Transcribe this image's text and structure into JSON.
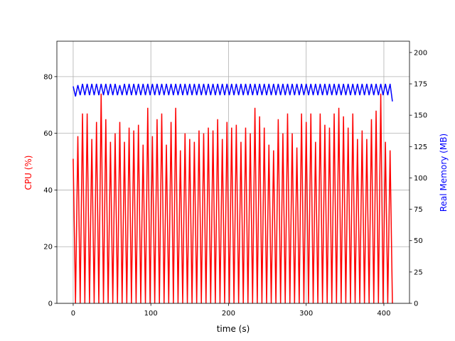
{
  "chart_data": {
    "type": "line",
    "xlabel": "time (s)",
    "ylabel": "CPU (%)",
    "y2label": "Real Memory (MB)",
    "xlim": [
      -21,
      433
    ],
    "xticks": [
      0,
      100,
      200,
      300,
      400
    ],
    "ylim": [
      0,
      92.5
    ],
    "yticks": [
      0,
      20,
      40,
      60,
      80
    ],
    "y2lim": [
      0,
      209
    ],
    "y2ticks": [
      0,
      25,
      50,
      75,
      100,
      125,
      150,
      175,
      200
    ],
    "grid": true,
    "x": [
      0,
      3,
      6,
      9,
      12,
      15,
      18,
      21,
      24,
      27,
      30,
      33,
      36,
      39,
      42,
      45,
      48,
      51,
      54,
      57,
      60,
      63,
      66,
      69,
      72,
      75,
      78,
      81,
      84,
      87,
      90,
      93,
      96,
      99,
      102,
      105,
      108,
      111,
      114,
      117,
      120,
      123,
      126,
      129,
      132,
      135,
      138,
      141,
      144,
      147,
      150,
      153,
      156,
      159,
      162,
      165,
      168,
      171,
      174,
      177,
      180,
      183,
      186,
      189,
      192,
      195,
      198,
      201,
      204,
      207,
      210,
      213,
      216,
      219,
      222,
      225,
      228,
      231,
      234,
      237,
      240,
      243,
      246,
      249,
      252,
      255,
      258,
      261,
      264,
      267,
      270,
      273,
      276,
      279,
      282,
      285,
      288,
      291,
      294,
      297,
      300,
      303,
      306,
      309,
      312,
      315,
      318,
      321,
      324,
      327,
      330,
      333,
      336,
      339,
      342,
      345,
      348,
      351,
      354,
      357,
      360,
      363,
      366,
      369,
      372,
      375,
      378,
      381,
      384,
      387,
      390,
      393,
      396,
      399,
      402,
      405,
      408,
      411
    ],
    "series": [
      {
        "name": "CPU (%)",
        "color": "#ff0000",
        "values": [
          51,
          0,
          59,
          0,
          67,
          0,
          67,
          0,
          58,
          0,
          64,
          0,
          74,
          0,
          65,
          0,
          57,
          0,
          60,
          0,
          64,
          0,
          57,
          0,
          62,
          0,
          61,
          0,
          63,
          0,
          56,
          0,
          69,
          0,
          59,
          0,
          65,
          0,
          67,
          0,
          56,
          0,
          64,
          0,
          69,
          0,
          54,
          0,
          60,
          0,
          58,
          0,
          57,
          0,
          61,
          0,
          60,
          0,
          62,
          0,
          61,
          0,
          65,
          0,
          58,
          0,
          64,
          0,
          62,
          0,
          63,
          0,
          57,
          0,
          62,
          0,
          60,
          0,
          69,
          0,
          66,
          0,
          62,
          0,
          56,
          0,
          54,
          0,
          65,
          0,
          60,
          0,
          67,
          0,
          60,
          0,
          55,
          0,
          67,
          0,
          64,
          0,
          67,
          0,
          57,
          0,
          67,
          0,
          63,
          0,
          62,
          0,
          67,
          0,
          69,
          0,
          66,
          0,
          62,
          0,
          67,
          0,
          58,
          0,
          61,
          0,
          58,
          0,
          65,
          0,
          68,
          0,
          74,
          0,
          57,
          0,
          54,
          0
        ]
      },
      {
        "name": "Real Memory (MB)",
        "color": "#0000ff",
        "axis": "y2",
        "values": [
          173,
          165,
          174,
          166,
          175,
          166,
          175,
          166,
          175,
          166,
          175,
          166,
          175,
          166,
          175,
          166,
          175,
          166,
          175,
          166,
          174,
          166,
          175,
          166,
          175,
          166,
          175,
          166,
          175,
          166,
          175,
          166,
          175,
          166,
          175,
          166,
          175,
          166,
          175,
          166,
          175,
          166,
          175,
          166,
          175,
          166,
          175,
          166,
          175,
          166,
          175,
          166,
          175,
          166,
          175,
          166,
          175,
          166,
          175,
          166,
          175,
          166,
          175,
          166,
          175,
          166,
          175,
          166,
          175,
          166,
          175,
          166,
          175,
          166,
          175,
          166,
          175,
          166,
          175,
          166,
          175,
          166,
          175,
          166,
          175,
          166,
          175,
          166,
          175,
          166,
          175,
          166,
          175,
          166,
          175,
          166,
          175,
          166,
          175,
          166,
          175,
          166,
          175,
          166,
          175,
          166,
          175,
          166,
          175,
          166,
          175,
          166,
          175,
          166,
          175,
          166,
          175,
          166,
          175,
          166,
          175,
          166,
          175,
          166,
          175,
          166,
          175,
          166,
          175,
          166,
          175,
          166,
          175,
          166,
          175,
          166,
          175,
          161
        ]
      }
    ]
  }
}
